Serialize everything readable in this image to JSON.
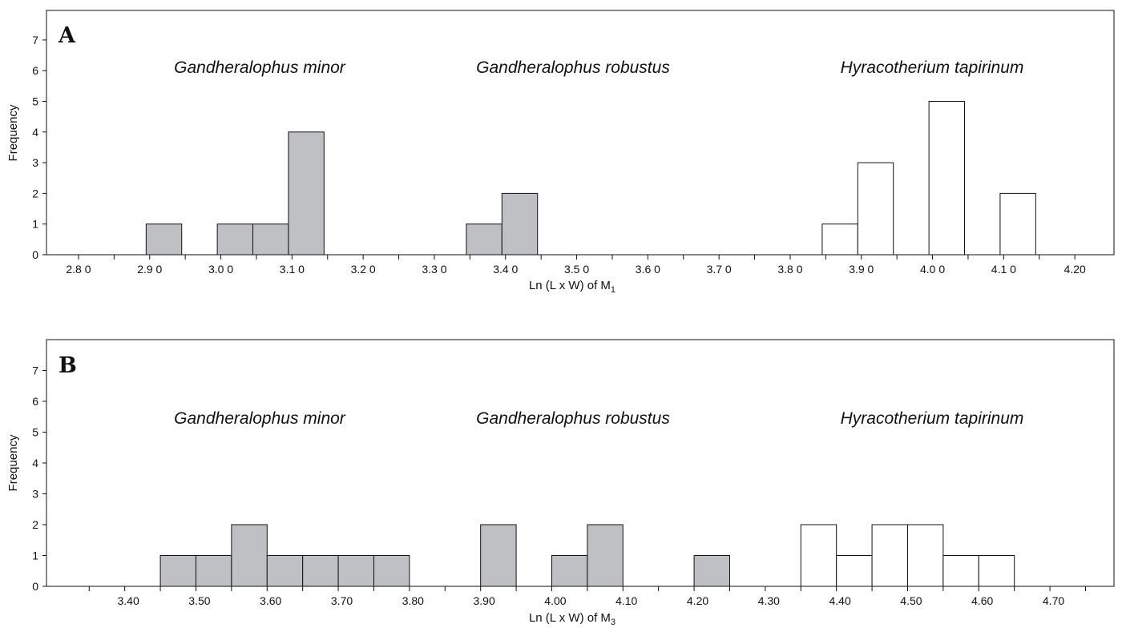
{
  "colors": {
    "filled": "#bfc0c3",
    "open": "#ffffff",
    "stroke": "#111111"
  },
  "chart_data": [
    {
      "type": "bar",
      "panel": "A",
      "xlabel": "Ln (L x W) of M",
      "xlabel_sub": "1",
      "ylabel": "Frequency",
      "ylim": [
        0,
        7.8
      ],
      "yticks": [
        "0",
        "1",
        "2",
        "3",
        "4",
        "5",
        "6",
        "7"
      ],
      "xlim": [
        2.755,
        4.255
      ],
      "x_tick_positions": [
        2.8,
        2.85,
        2.9,
        2.95,
        3.0,
        3.05,
        3.1,
        3.15,
        3.2,
        3.25,
        3.3,
        3.35,
        3.4,
        3.45,
        3.5,
        3.55,
        3.6,
        3.65,
        3.7,
        3.75,
        3.8,
        3.85,
        3.9,
        3.95,
        4.0,
        4.05,
        4.1,
        4.15,
        4.2
      ],
      "x_tick_labels": [
        {
          "x": 2.8,
          "label": "2.8 0"
        },
        {
          "x": 2.9,
          "label": "2.9 0"
        },
        {
          "x": 3.0,
          "label": "3.0 0"
        },
        {
          "x": 3.1,
          "label": "3.1 0"
        },
        {
          "x": 3.2,
          "label": "3.2 0"
        },
        {
          "x": 3.3,
          "label": "3.3 0"
        },
        {
          "x": 3.4,
          "label": "3.4 0"
        },
        {
          "x": 3.5,
          "label": "3.5 0"
        },
        {
          "x": 3.6,
          "label": "3.6 0"
        },
        {
          "x": 3.7,
          "label": "3.7 0"
        },
        {
          "x": 3.8,
          "label": "3.8 0"
        },
        {
          "x": 3.9,
          "label": "3.9 0"
        },
        {
          "x": 4.0,
          "label": "4.0 0"
        },
        {
          "x": 4.1,
          "label": "4.1 0"
        },
        {
          "x": 4.2,
          "label": "4.20"
        }
      ],
      "series": [
        {
          "name": "Gandheralophus minor",
          "fill": "filled",
          "bins": [
            {
              "start": 2.895,
              "end": 2.945,
              "value": 1
            },
            {
              "start": 2.995,
              "end": 3.045,
              "value": 1
            },
            {
              "start": 3.045,
              "end": 3.095,
              "value": 1
            },
            {
              "start": 3.095,
              "end": 3.145,
              "value": 4
            }
          ]
        },
        {
          "name": "Gandheralophus robustus",
          "fill": "filled",
          "bins": [
            {
              "start": 3.345,
              "end": 3.395,
              "value": 1
            },
            {
              "start": 3.395,
              "end": 3.445,
              "value": 2
            }
          ]
        },
        {
          "name": "Hyracotherium tapirinum",
          "fill": "open",
          "bins": [
            {
              "start": 3.845,
              "end": 3.895,
              "value": 1
            },
            {
              "start": 3.895,
              "end": 3.945,
              "value": 3
            },
            {
              "start": 3.995,
              "end": 4.045,
              "value": 5
            },
            {
              "start": 4.095,
              "end": 4.145,
              "value": 2
            }
          ]
        }
      ]
    },
    {
      "type": "bar",
      "panel": "B",
      "xlabel": "Ln (L x W) of M",
      "xlabel_sub": "3",
      "ylabel": "Frequency",
      "ylim": [
        0,
        7.8
      ],
      "yticks": [
        "0",
        "1",
        "2",
        "3",
        "4",
        "5",
        "6",
        "7"
      ],
      "xlim": [
        3.285,
        4.785
      ],
      "x_tick_positions": [
        3.345,
        3.395,
        3.445,
        3.495,
        3.545,
        3.595,
        3.645,
        3.695,
        3.745,
        3.795,
        3.845,
        3.895,
        3.945,
        3.995,
        4.045,
        4.095,
        4.145,
        4.195,
        4.245,
        4.295,
        4.345,
        4.395,
        4.445,
        4.495,
        4.545,
        4.595,
        4.645,
        4.695,
        4.745
      ],
      "x_tick_labels": [
        {
          "x": 3.4,
          "label": "3.40"
        },
        {
          "x": 3.5,
          "label": "3.50"
        },
        {
          "x": 3.6,
          "label": "3.60"
        },
        {
          "x": 3.7,
          "label": "3.70"
        },
        {
          "x": 3.8,
          "label": "3.80"
        },
        {
          "x": 3.9,
          "label": "3.90"
        },
        {
          "x": 4.0,
          "label": "4.00"
        },
        {
          "x": 4.1,
          "label": "4.10"
        },
        {
          "x": 4.2,
          "label": "4.20"
        },
        {
          "x": 4.3,
          "label": "4.30"
        },
        {
          "x": 4.4,
          "label": "4.40"
        },
        {
          "x": 4.5,
          "label": "4.50"
        },
        {
          "x": 4.6,
          "label": "4.60"
        },
        {
          "x": 4.7,
          "label": "4.70"
        }
      ],
      "series": [
        {
          "name": "Gandheralophus minor",
          "fill": "filled",
          "bins": [
            {
              "start": 3.445,
              "end": 3.495,
              "value": 1
            },
            {
              "start": 3.495,
              "end": 3.545,
              "value": 1
            },
            {
              "start": 3.545,
              "end": 3.595,
              "value": 2
            },
            {
              "start": 3.595,
              "end": 3.645,
              "value": 1
            },
            {
              "start": 3.645,
              "end": 3.695,
              "value": 1
            },
            {
              "start": 3.695,
              "end": 3.745,
              "value": 1
            },
            {
              "start": 3.745,
              "end": 3.795,
              "value": 1
            }
          ]
        },
        {
          "name": "Gandheralophus robustus",
          "fill": "filled",
          "bins": [
            {
              "start": 3.895,
              "end": 3.945,
              "value": 2
            },
            {
              "start": 3.995,
              "end": 4.045,
              "value": 1
            },
            {
              "start": 4.045,
              "end": 4.095,
              "value": 2
            },
            {
              "start": 4.195,
              "end": 4.245,
              "value": 1
            }
          ]
        },
        {
          "name": "Hyracotherium tapirinum",
          "fill": "open",
          "bins": [
            {
              "start": 4.345,
              "end": 4.395,
              "value": 2
            },
            {
              "start": 4.395,
              "end": 4.445,
              "value": 1
            },
            {
              "start": 4.445,
              "end": 4.495,
              "value": 2
            },
            {
              "start": 4.495,
              "end": 4.545,
              "value": 2
            },
            {
              "start": 4.545,
              "end": 4.595,
              "value": 1
            },
            {
              "start": 4.595,
              "end": 4.645,
              "value": 1
            }
          ]
        }
      ]
    }
  ]
}
